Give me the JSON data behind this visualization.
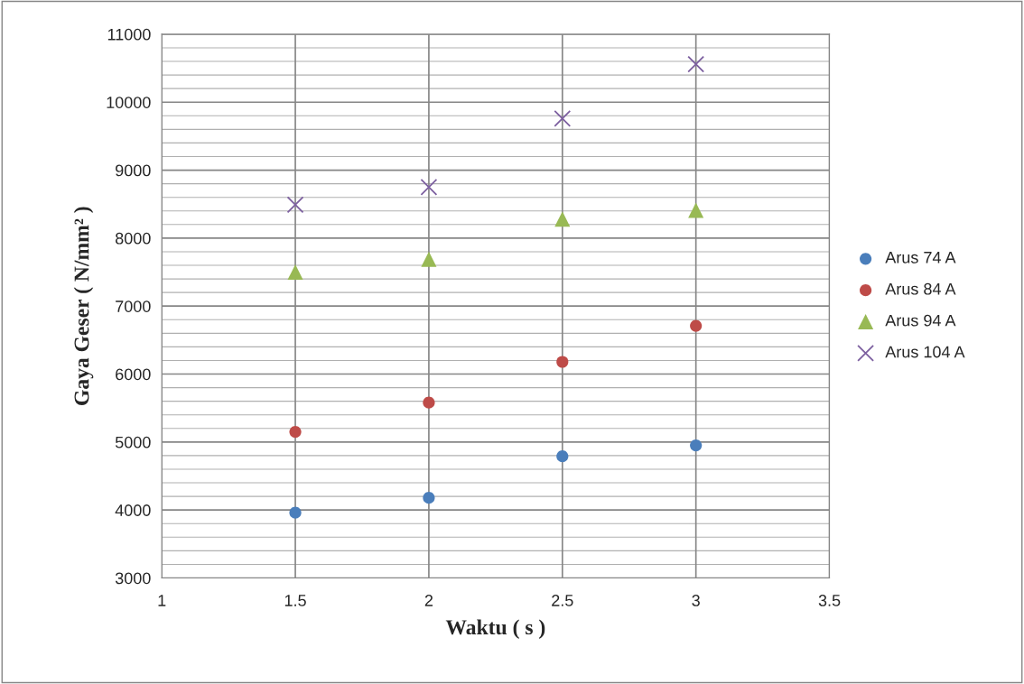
{
  "chart_data": {
    "type": "scatter",
    "xlabel": "Waktu ( s )",
    "ylabel": "Gaya Geser ( N/mm² )",
    "xlim": [
      1,
      3.5
    ],
    "xticks": [
      1,
      1.5,
      2,
      2.5,
      3,
      3.5
    ],
    "ylim": [
      3000,
      11000
    ],
    "yticks": [
      3000,
      4000,
      5000,
      6000,
      7000,
      8000,
      9000,
      10000,
      11000
    ],
    "grid": true,
    "legend": "right",
    "series": [
      {
        "name": "Arus 74 A",
        "color": "#4a7ebb",
        "marker": "circle",
        "x": [
          1.5,
          2,
          2.5,
          3
        ],
        "values": [
          3960,
          4180,
          4790,
          4950
        ]
      },
      {
        "name": "Arus 84 A",
        "color": "#be4b48",
        "marker": "circle",
        "x": [
          1.5,
          2,
          2.5,
          3
        ],
        "values": [
          5150,
          5580,
          6180,
          6710
        ]
      },
      {
        "name": "Arus 94 A",
        "color": "#98b954",
        "marker": "triangle",
        "x": [
          1.5,
          2,
          2.5,
          3
        ],
        "values": [
          7500,
          7690,
          8280,
          8410
        ]
      },
      {
        "name": "Arus 104 A",
        "color": "#7d60a0",
        "marker": "cross",
        "x": [
          1.5,
          2,
          2.5,
          3
        ],
        "values": [
          8490,
          8750,
          9760,
          10560
        ]
      }
    ]
  }
}
